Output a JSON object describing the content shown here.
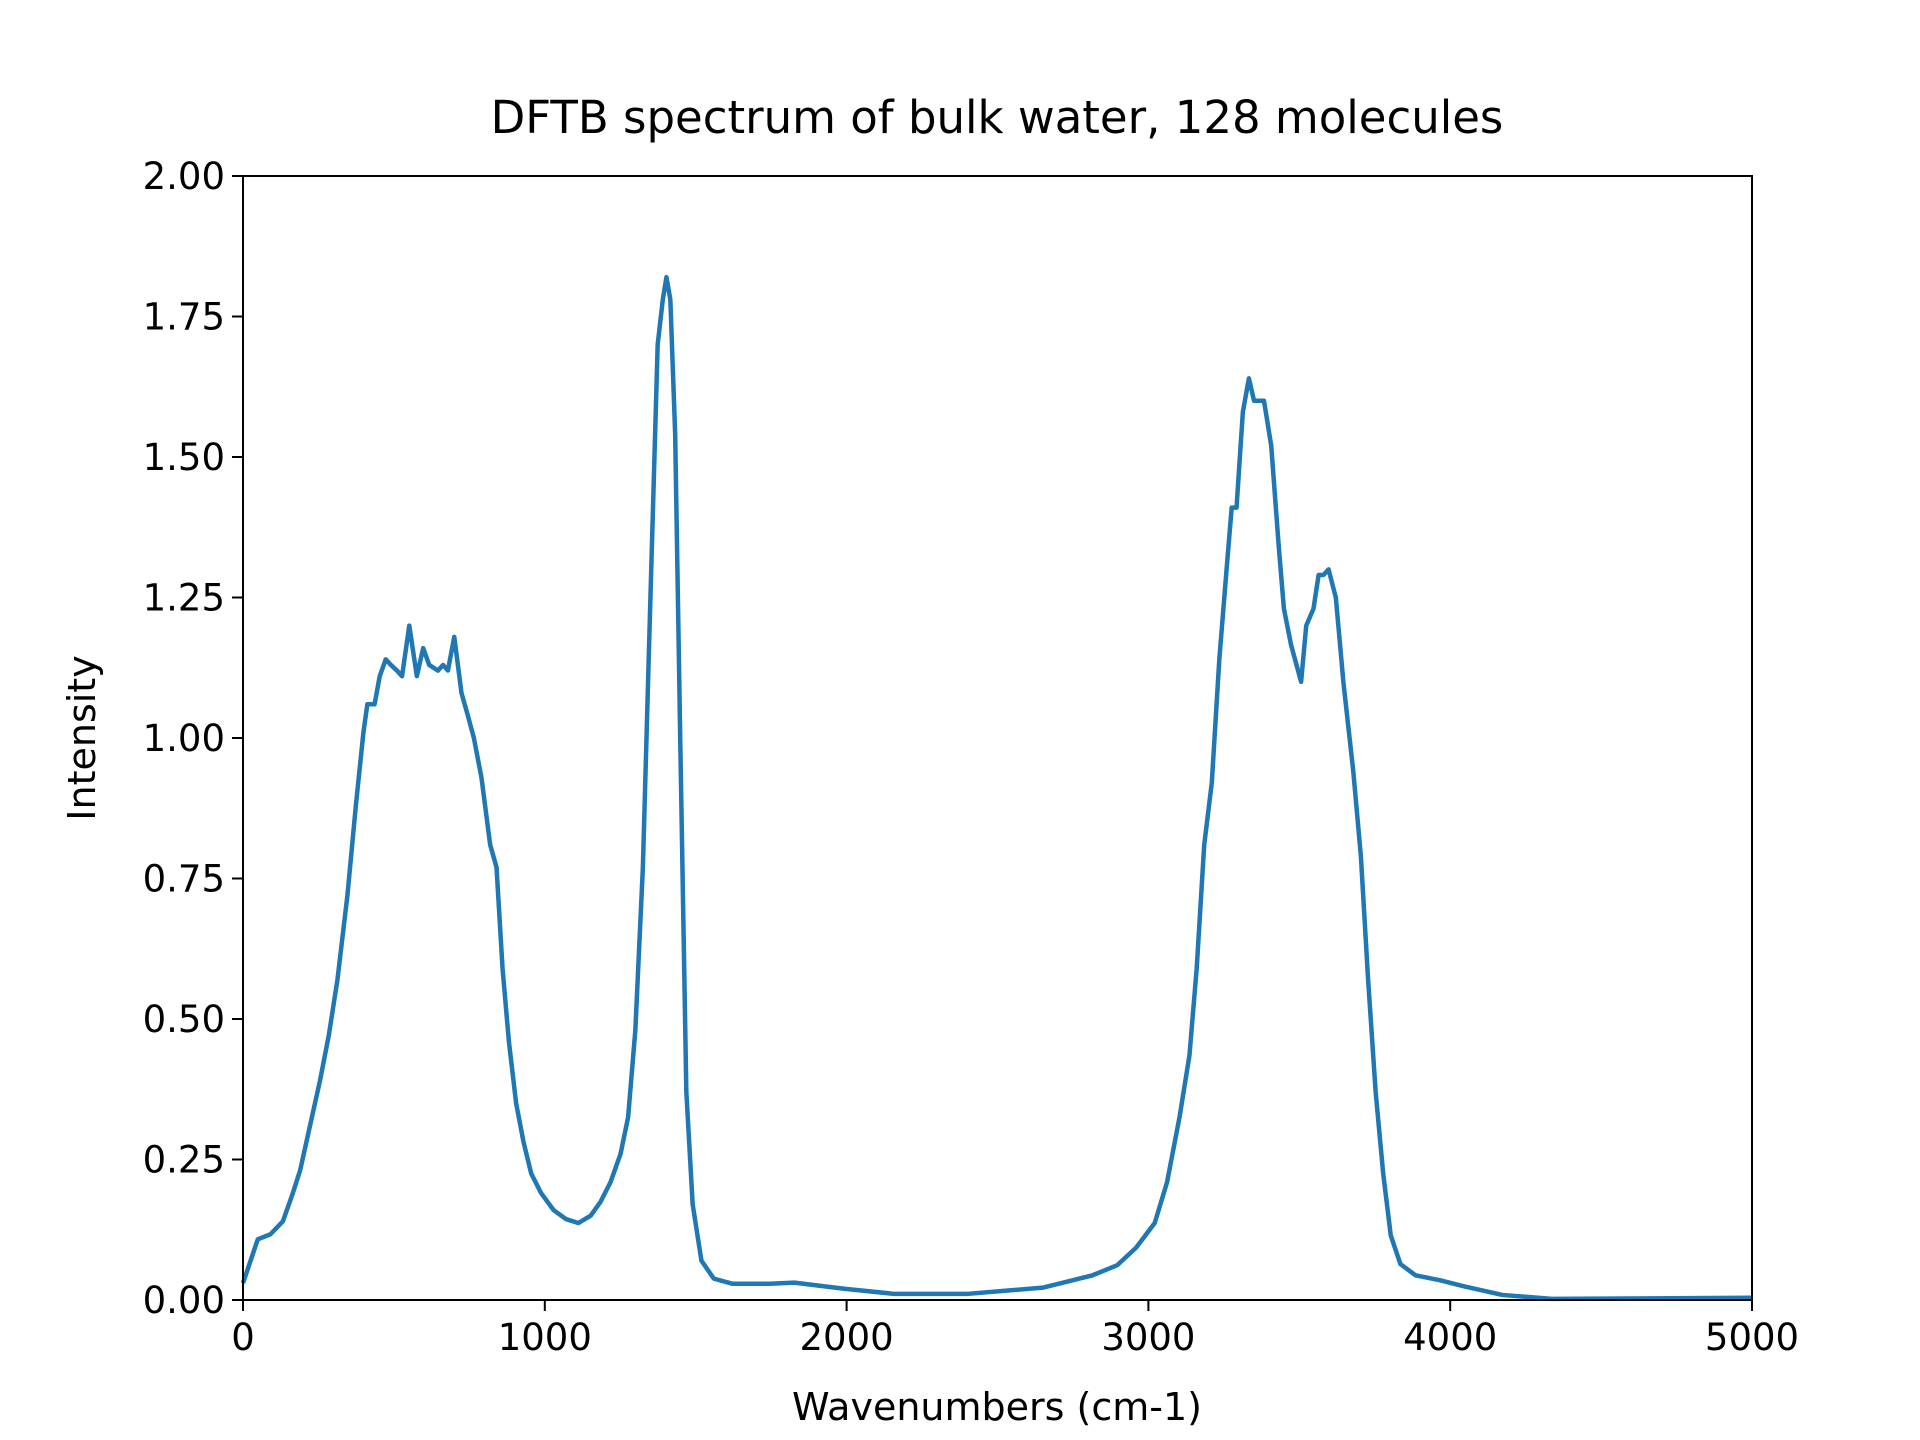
{
  "chart_data": {
    "type": "line",
    "title": "DFTB spectrum of bulk water, 128 molecules",
    "x_label": "Wavenumbers (cm-1)",
    "y_label": "Intensity",
    "xlim": [
      0,
      5000
    ],
    "ylim": [
      0,
      2
    ],
    "xticks": [
      0,
      1000,
      2000,
      3000,
      4000,
      5000
    ],
    "yticks": [
      {
        "value": 0,
        "label": "0.00"
      },
      {
        "value": 0.25,
        "label": "0.25"
      },
      {
        "value": 0.5,
        "label": "0.50"
      },
      {
        "value": 0.75,
        "label": "0.75"
      },
      {
        "value": 1,
        "label": "1.00"
      },
      {
        "value": 1.25,
        "label": "1.25"
      },
      {
        "value": 1.5,
        "label": "1.50"
      },
      {
        "value": 1.75,
        "label": "1.75"
      },
      {
        "value": 2,
        "label": "2.00"
      }
    ],
    "grid": false,
    "series": [
      {
        "color": "#1f77b4",
        "x": [
          0,
          49,
          91,
          132,
          165,
          189,
          222,
          255,
          284,
          313,
          346,
          374,
          399,
          412,
          436,
          453,
          473,
          490,
          510,
          527,
          551,
          576,
          597,
          617,
          646,
          663,
          679,
          700,
          724,
          745,
          765,
          790,
          819,
          840,
          860,
          881,
          905,
          930,
          955,
          988,
          1029,
          1070,
          1111,
          1152,
          1185,
          1218,
          1251,
          1276,
          1300,
          1325,
          1350,
          1374,
          1391,
          1403,
          1416,
          1432,
          1449,
          1469,
          1490,
          1519,
          1560,
          1621,
          1745,
          1827,
          1992,
          2156,
          2403,
          2650,
          2815,
          2897,
          2959,
          3021,
          3062,
          3103,
          3136,
          3160,
          3185,
          3210,
          3235,
          3259,
          3276,
          3292,
          3313,
          3333,
          3350,
          3366,
          3383,
          3407,
          3432,
          3449,
          3473,
          3506,
          3523,
          3547,
          3564,
          3580,
          3597,
          3621,
          3646,
          3679,
          3704,
          3728,
          3753,
          3778,
          3803,
          3835,
          3885,
          3967,
          4049,
          4173,
          4337,
          5000
        ],
        "values": [
          0.03,
          0.108,
          0.117,
          0.14,
          0.19,
          0.23,
          0.31,
          0.39,
          0.47,
          0.57,
          0.72,
          0.88,
          1.01,
          1.06,
          1.06,
          1.11,
          1.14,
          1.13,
          1.12,
          1.11,
          1.2,
          1.11,
          1.16,
          1.13,
          1.12,
          1.13,
          1.12,
          1.18,
          1.08,
          1.04,
          1.0,
          0.93,
          0.81,
          0.77,
          0.59,
          0.46,
          0.35,
          0.28,
          0.225,
          0.19,
          0.16,
          0.144,
          0.137,
          0.15,
          0.175,
          0.21,
          0.26,
          0.325,
          0.48,
          0.77,
          1.25,
          1.7,
          1.78,
          1.82,
          1.78,
          1.54,
          0.99,
          0.37,
          0.17,
          0.07,
          0.038,
          0.029,
          0.029,
          0.031,
          0.02,
          0.011,
          0.011,
          0.022,
          0.044,
          0.062,
          0.093,
          0.137,
          0.21,
          0.325,
          0.435,
          0.59,
          0.81,
          0.92,
          1.14,
          1.3,
          1.41,
          1.41,
          1.58,
          1.64,
          1.6,
          1.6,
          1.6,
          1.52,
          1.34,
          1.23,
          1.165,
          1.1,
          1.2,
          1.23,
          1.29,
          1.29,
          1.3,
          1.25,
          1.1,
          0.94,
          0.79,
          0.57,
          0.37,
          0.225,
          0.115,
          0.064,
          0.044,
          0.035,
          0.024,
          0.009,
          0.002,
          0.004
        ]
      }
    ]
  }
}
